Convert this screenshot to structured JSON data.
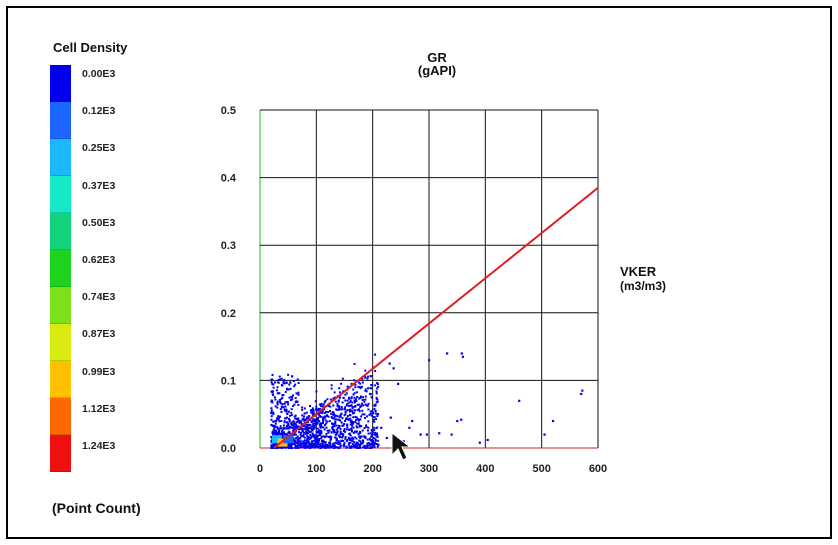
{
  "legend": {
    "title": "Cell Density",
    "footer": "(Point Count)",
    "entries": [
      {
        "label": "0.00E3",
        "color": "#0000ee"
      },
      {
        "label": "0.12E3",
        "color": "#1a66ff"
      },
      {
        "label": "0.25E3",
        "color": "#1ab8ff"
      },
      {
        "label": "0.37E3",
        "color": "#16e8c8"
      },
      {
        "label": "0.50E3",
        "color": "#12d47a"
      },
      {
        "label": "0.62E3",
        "color": "#1ed21e"
      },
      {
        "label": "0.74E3",
        "color": "#7ce01a"
      },
      {
        "label": "0.87E3",
        "color": "#d8ea10"
      },
      {
        "label": "0.99E3",
        "color": "#ffc000"
      },
      {
        "label": "1.12E3",
        "color": "#ff6a00"
      },
      {
        "label": "1.24E3",
        "color": "#ee1010"
      }
    ]
  },
  "chart_data": {
    "type": "scatter",
    "title": "GR",
    "title_unit": "(gAPI)",
    "ylabel": "VKER",
    "ylabel_unit": "(m3/m3)",
    "xlim": [
      0,
      600
    ],
    "ylim": [
      0,
      0.5
    ],
    "x_ticks": [
      "0",
      "100",
      "200",
      "300",
      "400",
      "500",
      "600"
    ],
    "y_ticks": [
      "0.0",
      "0.1",
      "0.2",
      "0.3",
      "0.4",
      "0.5"
    ],
    "grid": true,
    "regression_line": {
      "x": [
        25,
        600
      ],
      "y": [
        0.0,
        0.385
      ],
      "color": "#dd1f1f"
    },
    "dense_cells": [
      {
        "x": 30,
        "y": 0.01,
        "color": "#1ab8ff"
      },
      {
        "x": 40,
        "y": 0.005,
        "color": "#ffc000"
      },
      {
        "x": 50,
        "y": 0.01,
        "color": "#1a66ff"
      }
    ],
    "scattered_points": [
      [
        230,
        0.125
      ],
      [
        237,
        0.118
      ],
      [
        245,
        0.095
      ],
      [
        300,
        0.13
      ],
      [
        360,
        0.135
      ],
      [
        358,
        0.14
      ],
      [
        332,
        0.14
      ],
      [
        265,
        0.03
      ],
      [
        270,
        0.04
      ],
      [
        285,
        0.02
      ],
      [
        296,
        0.02
      ],
      [
        318,
        0.022
      ],
      [
        340,
        0.02
      ],
      [
        350,
        0.04
      ],
      [
        357,
        0.042
      ],
      [
        390,
        0.008
      ],
      [
        404,
        0.012
      ],
      [
        460,
        0.07
      ],
      [
        505,
        0.02
      ],
      [
        520,
        0.04
      ],
      [
        570,
        0.08
      ],
      [
        572,
        0.085
      ],
      [
        210,
        0.005
      ],
      [
        240,
        0.005
      ],
      [
        255,
        0.01
      ],
      [
        225,
        0.015
      ],
      [
        215,
        0.03
      ],
      [
        232,
        0.045
      ],
      [
        205,
        0.055
      ],
      [
        198,
        0.075
      ]
    ],
    "point_color": "#0000ee"
  }
}
